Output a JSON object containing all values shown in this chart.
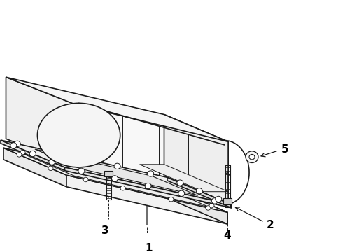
{
  "bg_color": "#ffffff",
  "line_color": "#1a1a1a",
  "label_color": "#000000",
  "fig_width": 4.9,
  "fig_height": 3.6,
  "dpi": 100,
  "label_fontsize": 11,
  "label_fontweight": "bold"
}
